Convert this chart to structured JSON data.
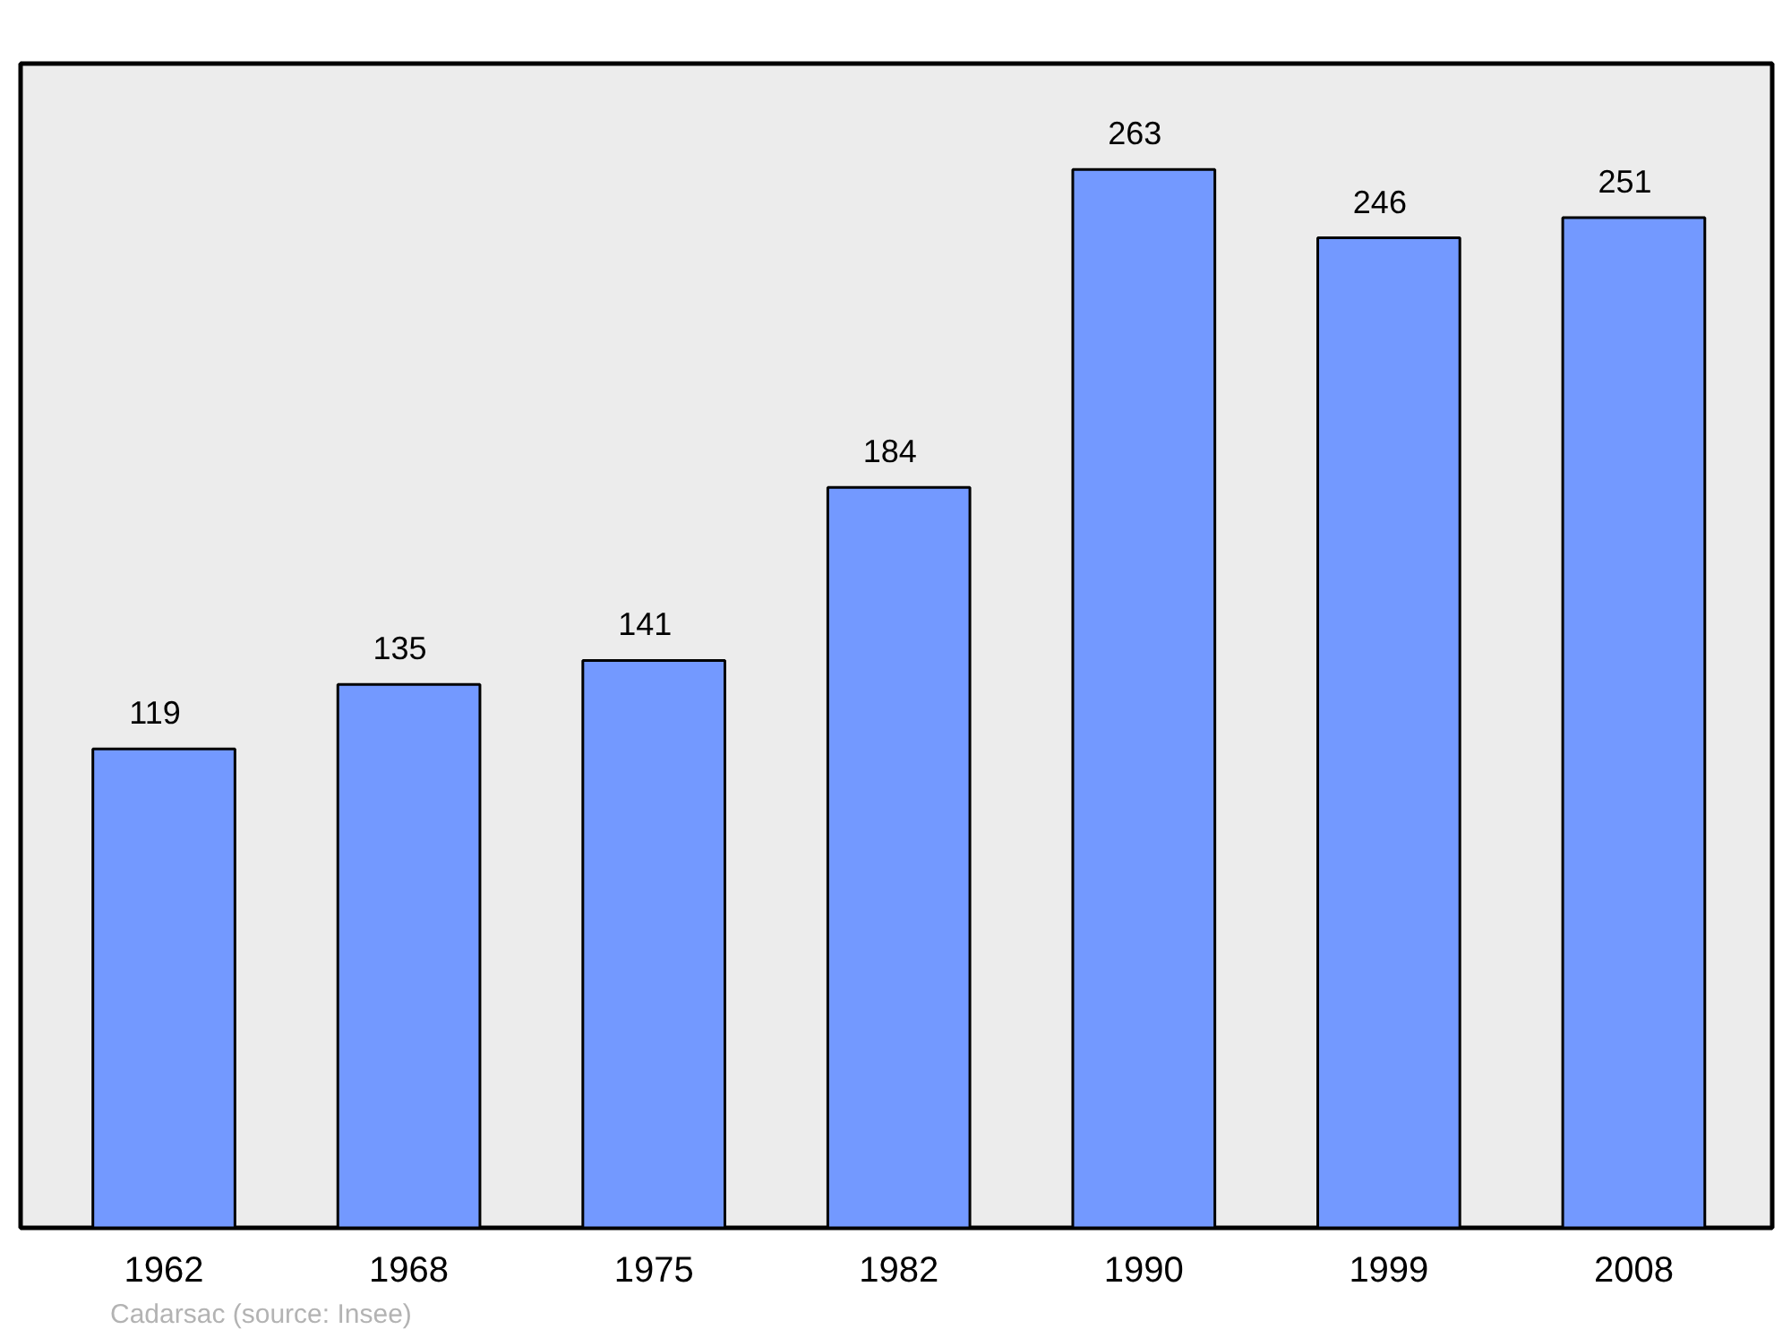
{
  "chart_data": {
    "type": "bar",
    "categories": [
      "1962",
      "1968",
      "1975",
      "1982",
      "1990",
      "1999",
      "2008"
    ],
    "values": [
      119,
      135,
      141,
      184,
      263,
      246,
      251
    ],
    "color": "#7399ff",
    "data_labels": true,
    "annotations": [
      "Cadarsac    (source: Insee)"
    ]
  }
}
